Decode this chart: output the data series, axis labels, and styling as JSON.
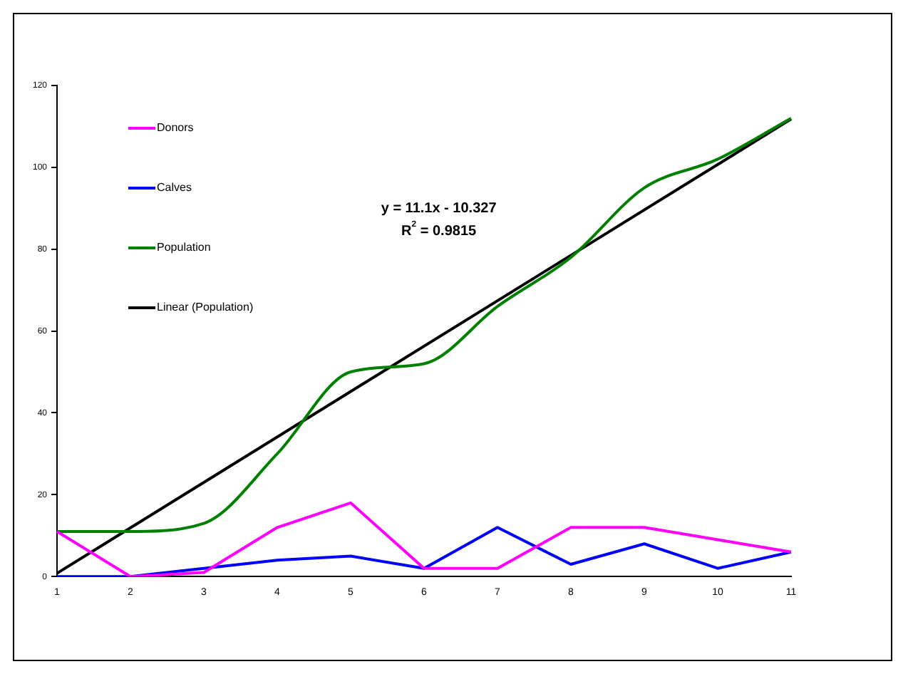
{
  "chart_data": {
    "type": "line",
    "categories": [
      "1",
      "2",
      "3",
      "4",
      "5",
      "6",
      "7",
      "8",
      "9",
      "10",
      "11"
    ],
    "series": [
      {
        "name": "Donors",
        "color": "#ff00ff",
        "values": [
          11,
          0,
          1,
          12,
          18,
          2,
          2,
          12,
          12,
          9,
          6
        ]
      },
      {
        "name": "Calves",
        "color": "#0000ff",
        "values": [
          0,
          0,
          2,
          4,
          5,
          2,
          12,
          3,
          8,
          2,
          6
        ]
      },
      {
        "name": "Population",
        "color": "#008000",
        "values": [
          11,
          11,
          13,
          30,
          50,
          52,
          66,
          78,
          95,
          102,
          112
        ]
      },
      {
        "name": "Linear (Population)",
        "color": "#000000",
        "x": [
          "1",
          "11"
        ],
        "values": [
          0.8,
          111.8
        ]
      }
    ],
    "ylim": [
      0,
      120
    ],
    "yticks": [
      0,
      20,
      40,
      60,
      80,
      100,
      120
    ],
    "grid": false,
    "legend": "top left",
    "marker": "none",
    "annotations": [
      "y = 11.1x - 10.327",
      "R$^{2}$ = 0.9815"
    ]
  }
}
